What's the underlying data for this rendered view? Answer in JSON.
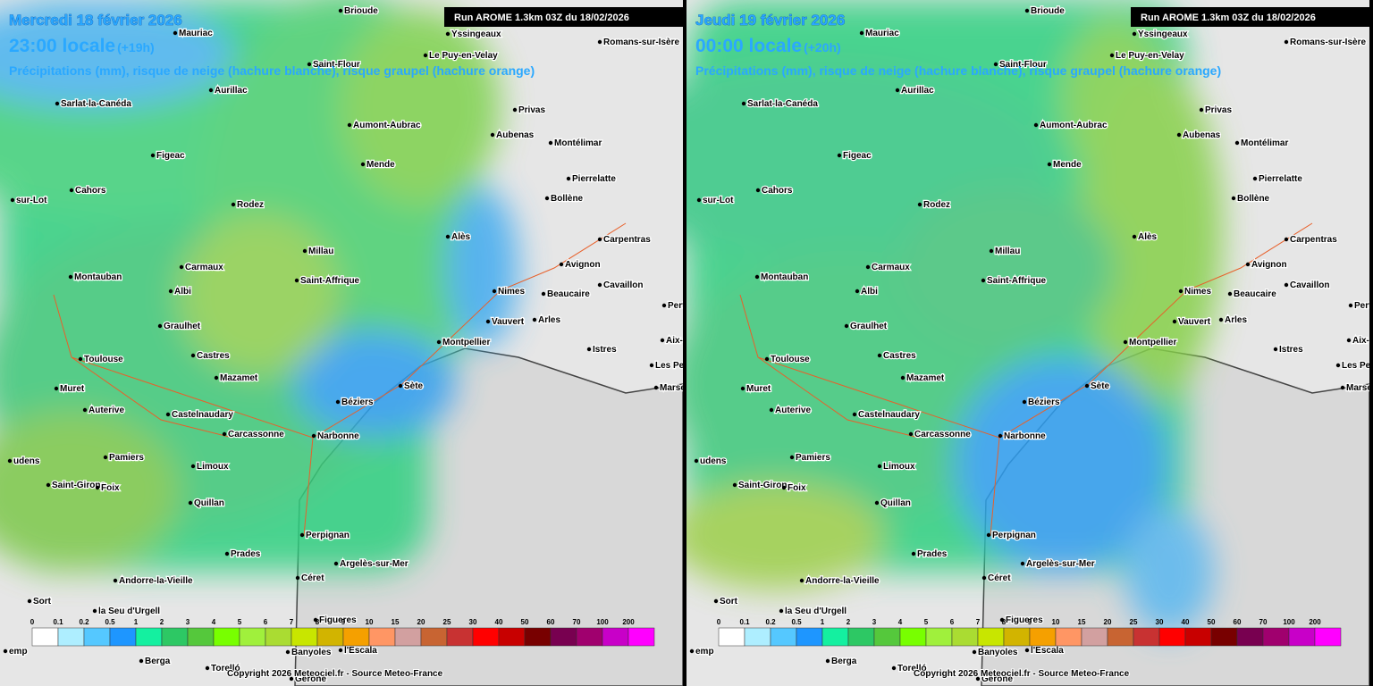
{
  "panels": [
    {
      "date": "Mercredi 18 février 2026",
      "time": "23:00 locale",
      "offset": "(+19h)",
      "subtitle": "Précipitations (mm), risque de neige (hachure blanche), risque graupel (hachure orange)",
      "run": "Run AROME 1.3km 03Z du 18/02/2026",
      "copyright": "Copyright 2026 Meteociel.fr - Source Meteo-France"
    },
    {
      "date": "Jeudi 19 février 2026",
      "time": "00:00 locale",
      "offset": "(+20h)",
      "subtitle": "Précipitations (mm), risque de neige (hachure blanche), risque graupel (hachure orange)",
      "run": "Run AROME 1.3km 03Z du 18/02/2026",
      "copyright": "Copyright 2026 Meteociel.fr - Source Meteo-France"
    }
  ],
  "cities": [
    "Brioude",
    "Mauriac",
    "Yssingeaux",
    "Romans-sur-Isère",
    "Le Puy-en-Velay",
    "Saint-Flour",
    "Aurillac",
    "Sarlat-la-Canéda",
    "Privas",
    "Aumont-Aubrac",
    "Aubenas",
    "Montélimar",
    "Figeac",
    "Mende",
    "Pierrelatte",
    "Cahors",
    "Bollène",
    "sur-Lot",
    "Rodez",
    "Alès",
    "Carpentras",
    "Millau",
    "Avignon",
    "Carmaux",
    "Montauban",
    "Saint-Affrique",
    "Albi",
    "Nimes",
    "Beaucaire",
    "Cavaillon",
    "Pertuis",
    "Graulhet",
    "Vauvert",
    "Arles",
    "Montpellier",
    "Aix-en-P",
    "Istres",
    "Castres",
    "Toulouse",
    "Les Pennes-M",
    "Mazamet",
    "Sète",
    "Marseille",
    "Muret",
    "Béziers",
    "Auterive",
    "Castelnaudary",
    "Carcassonne",
    "Narbonne",
    "Pamiers",
    "udens",
    "Limoux",
    "Saint-Girons",
    "Foix",
    "Quillan",
    "Perpignan",
    "Prades",
    "Argelès-sur-Mer",
    "Céret",
    "Andorre-la-Vieille",
    "Sort",
    "la Seu d'Urgell",
    "Figueres",
    "l'Escala",
    "Banyoles",
    "emp",
    "Berga",
    "Torelló",
    "Gerone"
  ],
  "legend": {
    "labels": [
      "0",
      "0.1",
      "0.2",
      "0.5",
      "1",
      "2",
      "3",
      "4",
      "5",
      "6",
      "7",
      "8",
      "9",
      "10",
      "15",
      "20",
      "25",
      "30",
      "40",
      "50",
      "60",
      "70",
      "100",
      "200"
    ],
    "colors": [
      "#ffffff",
      "#aeeeff",
      "#55c8ff",
      "#1e96ff",
      "#14f0a0",
      "#2dc864",
      "#55c83c",
      "#78ff00",
      "#a0f03c",
      "#aadc32",
      "#c8e600",
      "#d2b400",
      "#f5a000",
      "#ff9664",
      "#d2a0a0",
      "#c86432",
      "#c83232",
      "#ff0000",
      "#c80000",
      "#780000",
      "#780050",
      "#a0006e",
      "#c800c8",
      "#ff00ff"
    ]
  }
}
